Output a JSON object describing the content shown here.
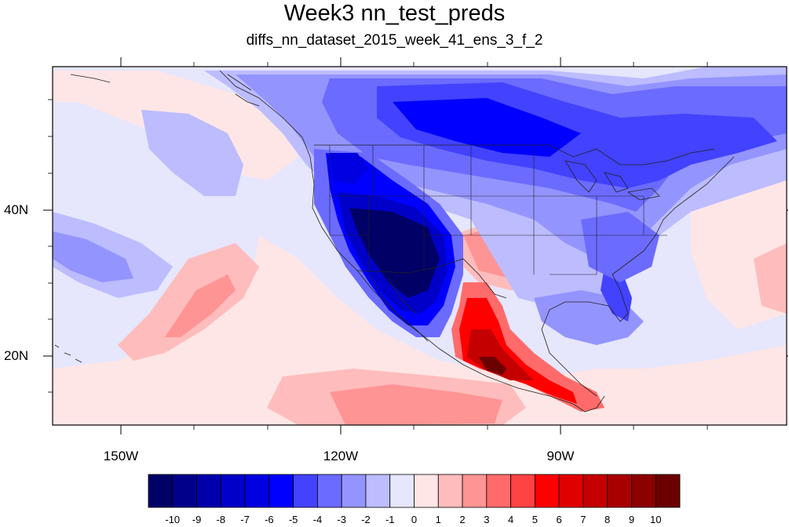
{
  "title": "Week3 nn_test_preds",
  "subtitle": "diffs_nn_dataset_2015_week_41_ens_3_f_2",
  "map": {
    "projection": "cylindrical-equidistant",
    "lon_range": [
      -159.3,
      -60.8
    ],
    "lat_range": [
      10,
      58
    ],
    "lat_ticks": [
      {
        "value": 40,
        "label": "40N"
      },
      {
        "value": 20,
        "label": "20N"
      }
    ],
    "lon_ticks": [
      {
        "value": -150,
        "label": "150W"
      },
      {
        "value": -120,
        "label": "120W"
      },
      {
        "value": -90,
        "label": "90W"
      }
    ],
    "features": [
      "coastlines",
      "country-borders",
      "us-state-borders"
    ]
  },
  "colorbar": {
    "levels": [
      "-10",
      "-9",
      "-8",
      "-7",
      "-6",
      "-5",
      "-4",
      "-3",
      "-2",
      "-1",
      "0",
      "1",
      "2",
      "3",
      "4",
      "5",
      "6",
      "7",
      "8",
      "9",
      "10"
    ],
    "colors": [
      "#000066",
      "#00008a",
      "#0000aa",
      "#0000c8",
      "#0000e0",
      "#0000ff",
      "#4242ff",
      "#6b6bff",
      "#9494ff",
      "#bcbcff",
      "#e6e6fc",
      "#ffe6e6",
      "#ffbcbc",
      "#ff9494",
      "#ff6b6b",
      "#ff4242",
      "#ff0000",
      "#e00000",
      "#c40000",
      "#a80000",
      "#8c0000",
      "#6b0000"
    ]
  },
  "field_colors": {
    "background": "#e6e6fc",
    "land_line": "#222222"
  }
}
